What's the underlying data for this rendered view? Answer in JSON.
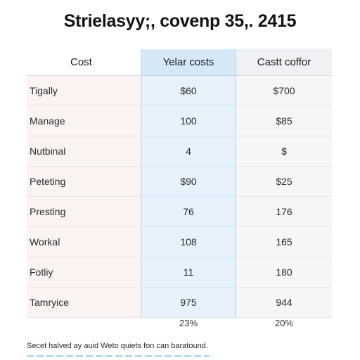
{
  "title": "Strielasyy;, covenp 35,. 2415",
  "table": {
    "headers": [
      "Cost",
      "Yelar costs",
      "Castt coffor"
    ],
    "rows": [
      {
        "label": "Tigally",
        "col2": "$60",
        "col3": "$700"
      },
      {
        "label": "Manage",
        "col2": "100",
        "col3": "$85"
      },
      {
        "label": "Nutbinal",
        "col2": "4",
        "col3": "$"
      },
      {
        "label": "Peteting",
        "col2": "$90",
        "col3": "$25"
      },
      {
        "label": "Presting",
        "col2": "76",
        "col3": "176"
      },
      {
        "label": "Workal",
        "col2": "108",
        "col3": "165"
      },
      {
        "label": "Fotliy",
        "col2": "11",
        "col3": "180"
      },
      {
        "label": "Tamryice",
        "col2": "975",
        "col3": "944"
      }
    ],
    "totals": [
      "23%",
      "20%"
    ]
  },
  "footnote": "Secet halved ay auid Weto quiets fon can baratound."
}
